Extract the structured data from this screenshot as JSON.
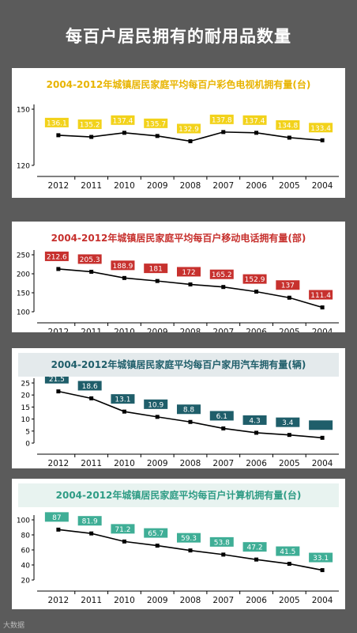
{
  "page": {
    "title": "每百户居民拥有的耐用品数量"
  },
  "watermark": "大数据",
  "colors": {
    "background": "#5b5b5b",
    "tv": "#f2d21b",
    "phone": "#c7312e",
    "car": "#1f5e6a",
    "computer": "#3fae96"
  },
  "chart_data": [
    {
      "type": "line",
      "title": "2004-2012年城镇居民家庭平均每百户彩色电视机拥有量(台)",
      "categories": [
        "2012",
        "2011",
        "2010",
        "2009",
        "2008",
        "2007",
        "2006",
        "2005",
        "2004"
      ],
      "values": [
        136.1,
        135.2,
        137.4,
        135.7,
        132.9,
        137.8,
        137.4,
        134.8,
        133.4
      ],
      "labels": [
        "136.1",
        "135.2",
        "137.4",
        "135.7",
        "132.9",
        "137.8",
        "137.4",
        "134.8",
        "133.4"
      ],
      "yticks": [
        120,
        150
      ],
      "ylim": [
        120,
        150
      ],
      "color": "#f2d21b",
      "title_color": "#e8b400",
      "header_bg": "#ffffff",
      "label_text": "#ffffff"
    },
    {
      "type": "line",
      "title": "2004-2012年城镇居民家庭平均每百户移动电话拥有量(部)",
      "categories": [
        "2012",
        "2011",
        "2010",
        "2009",
        "2008",
        "2007",
        "2006",
        "2005",
        "2004"
      ],
      "values": [
        212.6,
        205.3,
        188.9,
        181,
        172,
        165.2,
        152.9,
        137,
        111.4
      ],
      "labels": [
        "212.6",
        "205.3",
        "188.9",
        "181",
        "172",
        "165.2",
        "152.9",
        "137",
        "111.4"
      ],
      "yticks": [
        100,
        150,
        200,
        250
      ],
      "ylim": [
        100,
        250
      ],
      "color": "#c7312e",
      "title_color": "#c7312e",
      "header_bg": "#ffffff",
      "label_text": "#ffffff"
    },
    {
      "type": "line",
      "title": "2004-2012年城镇居民家庭平均每百户家用汽车拥有量(辆)",
      "categories": [
        "2012",
        "2011",
        "2010",
        "2009",
        "2008",
        "2007",
        "2006",
        "2005",
        "2004"
      ],
      "values": [
        21.5,
        18.6,
        13.1,
        10.9,
        8.8,
        6.1,
        4.3,
        3.4,
        2.2
      ],
      "labels": [
        "21.5",
        "18.6",
        "13.1",
        "10.9",
        "8.8",
        "6.1",
        "4.3",
        "3.4",
        ""
      ],
      "yticks": [
        0,
        5,
        10,
        15,
        20,
        25
      ],
      "ylim": [
        0,
        25
      ],
      "color": "#1f5e6a",
      "title_color": "#1f5e6a",
      "header_bg": "#e4eaec",
      "label_text": "#ffffff"
    },
    {
      "type": "line",
      "title": "2004-2012年城镇居民家庭平均每百户计算机拥有量(台)",
      "categories": [
        "2012",
        "2011",
        "2010",
        "2009",
        "2008",
        "2007",
        "2006",
        "2005",
        "2004"
      ],
      "values": [
        87,
        81.9,
        71.2,
        65.7,
        59.3,
        53.8,
        47.2,
        41.5,
        33.1
      ],
      "labels": [
        "87",
        "81.9",
        "71.2",
        "65.7",
        "59.3",
        "53.8",
        "47.2",
        "41.5",
        "33.1"
      ],
      "yticks": [
        20,
        40,
        60,
        80,
        100
      ],
      "ylim": [
        20,
        100
      ],
      "color": "#3fae96",
      "title_color": "#2f9c85",
      "header_bg": "#e8f3f0",
      "label_text": "#ffffff"
    }
  ]
}
